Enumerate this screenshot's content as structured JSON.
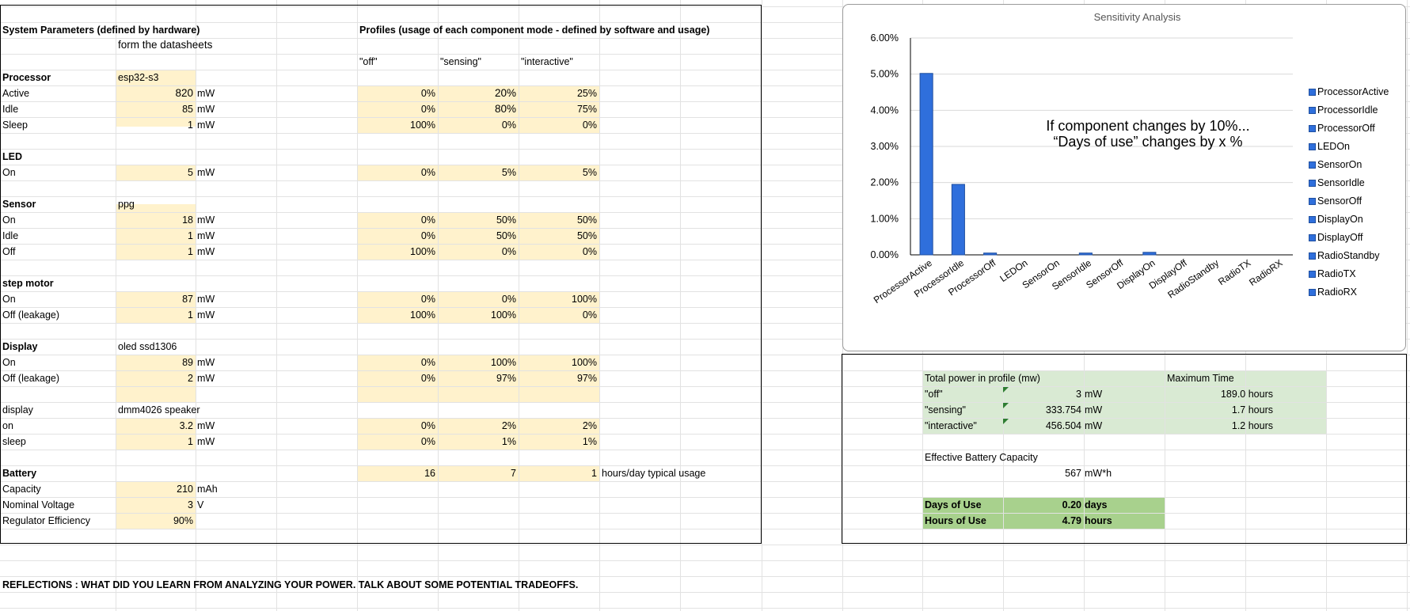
{
  "colors": {
    "input_fill": "#fff2cc",
    "light_green": "#d9ead3",
    "green": "#a8d18d",
    "bar": "#2f6fdc",
    "bar_border": "#1f4f9f"
  },
  "system": {
    "heading": "System Parameters (defined by hardware)",
    "subheading": "form the datasheets",
    "processor": {
      "label": "Processor",
      "model": "esp32-s3",
      "rows": [
        {
          "label": "Active",
          "value": "820",
          "unit": "mW",
          "off": "0%",
          "sensing": "20%",
          "interactive": "25%"
        },
        {
          "label": "Idle",
          "value": "85",
          "unit": "mW",
          "off": "0%",
          "sensing": "80%",
          "interactive": "75%"
        },
        {
          "label": "Sleep",
          "value": "1",
          "unit": "mW",
          "off": "100%",
          "sensing": "0%",
          "interactive": "0%"
        }
      ]
    },
    "led": {
      "label": "LED",
      "rows": [
        {
          "label": "On",
          "value": "5",
          "unit": "mW",
          "off": "0%",
          "sensing": "5%",
          "interactive": "5%"
        }
      ]
    },
    "sensor": {
      "label": "Sensor",
      "model": "ppg",
      "rows": [
        {
          "label": "On",
          "value": "18",
          "unit": "mW",
          "off": "0%",
          "sensing": "50%",
          "interactive": "50%"
        },
        {
          "label": "Idle",
          "value": "1",
          "unit": "mW",
          "off": "0%",
          "sensing": "50%",
          "interactive": "50%"
        },
        {
          "label": "Off",
          "value": "1",
          "unit": "mW",
          "off": "100%",
          "sensing": "0%",
          "interactive": "0%"
        }
      ]
    },
    "motor": {
      "label": "step motor",
      "rows": [
        {
          "label": "On",
          "value": "87",
          "unit": "mW",
          "off": "0%",
          "sensing": "0%",
          "interactive": "100%"
        },
        {
          "label": "Off (leakage)",
          "value": "1",
          "unit": "mW",
          "off": "100%",
          "sensing": "100%",
          "interactive": "0%"
        }
      ]
    },
    "display": {
      "label": "Display",
      "model": "oled ssd1306",
      "rows": [
        {
          "label": "On",
          "value": "89",
          "unit": "mW",
          "off": "0%",
          "sensing": "100%",
          "interactive": "100%"
        },
        {
          "label": "Off (leakage)",
          "value": "2",
          "unit": "mW",
          "off": "0%",
          "sensing": "97%",
          "interactive": "97%"
        }
      ]
    },
    "speaker": {
      "label": "display",
      "model": "dmm4026 speaker",
      "rows": [
        {
          "label": "on",
          "value": "3.2",
          "unit": "mW",
          "off": "0%",
          "sensing": "2%",
          "interactive": "2%"
        },
        {
          "label": "sleep",
          "value": "1",
          "unit": "mW",
          "off": "0%",
          "sensing": "1%",
          "interactive": "1%"
        }
      ]
    },
    "battery": {
      "label": "Battery",
      "hours_off": "16",
      "hours_sensing": "7",
      "hours_interactive": "1",
      "hours_label": "hours/day typical usage",
      "capacity_label": "Capacity",
      "capacity_value": "210",
      "capacity_unit": "mAh",
      "voltage_label": "Nominal Voltage",
      "voltage_value": "3",
      "voltage_unit": "V",
      "efficiency_label": "Regulator Efficiency",
      "efficiency_value": "90%"
    }
  },
  "profiles": {
    "heading": "Profiles (usage of each component mode - defined by software and usage)",
    "col_off": "\"off\"",
    "col_sensing": "\"sensing\"",
    "col_interactive": "\"interactive\""
  },
  "summary": {
    "total_power_label": "Total power in profile (mw)",
    "max_time_label": "Maximum Time",
    "rows": [
      {
        "label": "\"off\"",
        "power": "3",
        "unit": "mW",
        "time": "189.0 hours"
      },
      {
        "label": "\"sensing\"",
        "power": "333.754",
        "unit": "mW",
        "time": "1.7 hours"
      },
      {
        "label": "\"interactive\"",
        "power": "456.504",
        "unit": "mW",
        "time": "1.2 hours"
      }
    ],
    "battery_cap_label": "Effective Battery Capacity",
    "battery_cap_value": "567",
    "battery_cap_unit": "mW*h",
    "days_label": "Days of Use",
    "days_value": "0.20",
    "days_unit": "days",
    "hours_label": "Hours of Use",
    "hours_value": "4.79",
    "hours_unit": "hours"
  },
  "reflections": "REFLECTIONS : WHAT DID YOU LEARN FROM ANALYZING YOUR POWER.  TALK ABOUT SOME POTENTIAL TRADEOFFS.",
  "chart_data": {
    "type": "bar",
    "title": "Sensitivity Analysis",
    "annotation_line1": "If component changes by 10%...",
    "annotation_line2": "“Days of use” changes by x %",
    "categories": [
      "ProcessorActive",
      "ProcessorIdle",
      "ProcessorOff",
      "LEDOn",
      "SensorOn",
      "SensorIdle",
      "SensorOff",
      "DisplayOn",
      "DisplayOff",
      "RadioStandby",
      "RadioTX",
      "RadioRX"
    ],
    "values": [
      5.02,
      1.95,
      0.05,
      0.0,
      0.0,
      0.05,
      0.0,
      0.07,
      0.0,
      0.0,
      0.0,
      0.0
    ],
    "ylim": [
      0,
      6
    ],
    "yticks": [
      "0.00%",
      "1.00%",
      "2.00%",
      "3.00%",
      "4.00%",
      "5.00%",
      "6.00%"
    ],
    "legend": [
      "ProcessorActive",
      "ProcessorIdle",
      "ProcessorOff",
      "LEDOn",
      "SensorOn",
      "SensorIdle",
      "SensorOff",
      "DisplayOn",
      "DisplayOff",
      "RadioStandby",
      "RadioTX",
      "RadioRX"
    ],
    "legend_position": "right",
    "grid": true
  }
}
